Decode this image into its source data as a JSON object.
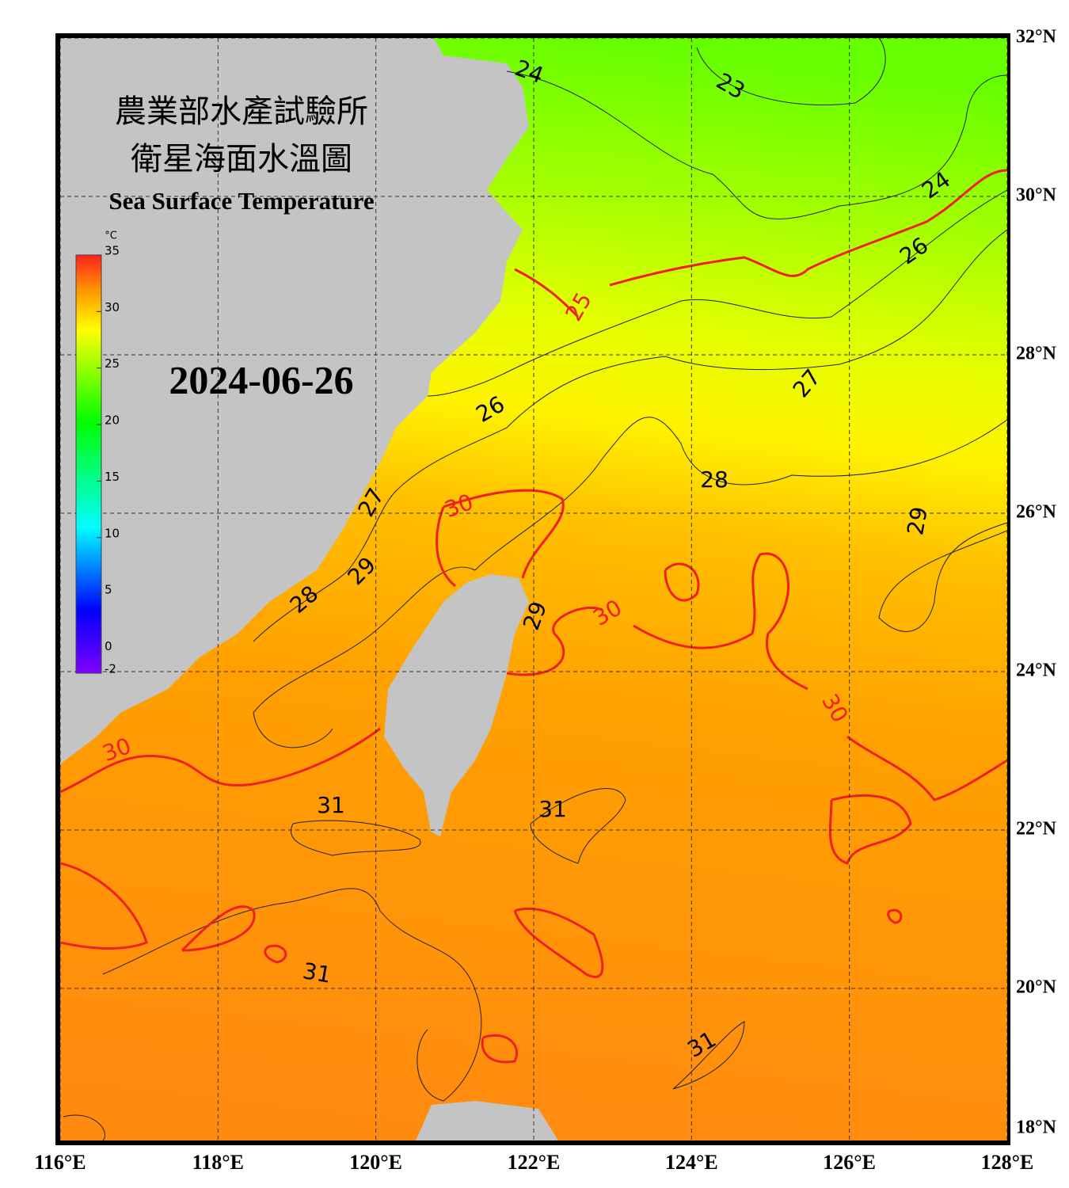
{
  "title_zh_1": "農業部水產試驗所",
  "title_zh_2": "衛星海面水溫圖",
  "title_en": "Sea Surface Temperature",
  "date": "2024-06-26",
  "colorbar": {
    "unit": "°C",
    "range": [
      -2,
      35
    ],
    "ticks": [
      35,
      30,
      25,
      20,
      15,
      10,
      5,
      0,
      -2
    ]
  },
  "map": {
    "lon_range": [
      116,
      128
    ],
    "lat_range": [
      18,
      32
    ],
    "grid": true,
    "lon_ticks": [
      {
        "value": 116,
        "label": "116°E"
      },
      {
        "value": 118,
        "label": "118°E"
      },
      {
        "value": 120,
        "label": "120°E"
      },
      {
        "value": 122,
        "label": "122°E"
      },
      {
        "value": 124,
        "label": "124°E"
      },
      {
        "value": 126,
        "label": "126°E"
      },
      {
        "value": 128,
        "label": "128°E"
      }
    ],
    "lat_ticks": [
      {
        "value": 32,
        "label": "32°N"
      },
      {
        "value": 30,
        "label": "30°N"
      },
      {
        "value": 28,
        "label": "28°N"
      },
      {
        "value": 26,
        "label": "26°N"
      },
      {
        "value": 24,
        "label": "24°N"
      },
      {
        "value": 22,
        "label": "22°N"
      },
      {
        "value": 20,
        "label": "20°N"
      },
      {
        "value": 18,
        "label": "18°N"
      }
    ],
    "contour_labels": [
      24,
      23,
      24,
      26,
      25,
      26,
      27,
      28,
      27,
      30,
      29,
      29,
      28,
      29,
      30,
      30,
      30,
      31,
      31,
      31,
      31
    ]
  }
}
